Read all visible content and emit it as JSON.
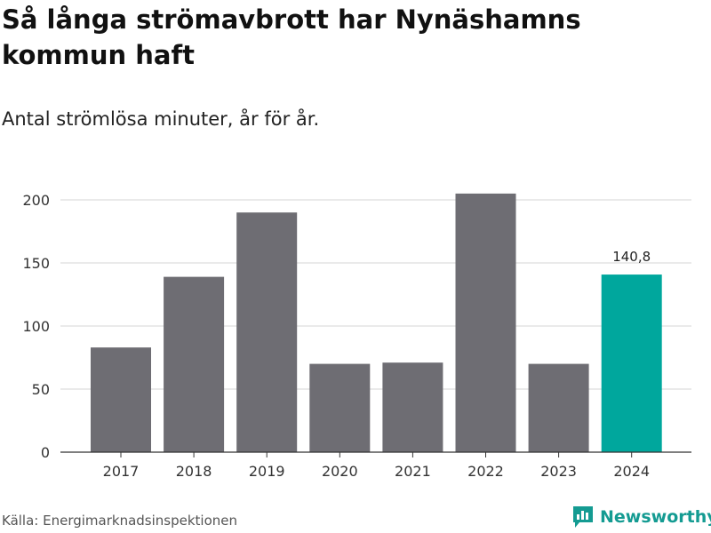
{
  "header": {
    "title": "Så långa strömavbrott har Nynäshamns kommun haft",
    "subtitle": "Antal strömlösa minuter, år för år."
  },
  "footer": {
    "source": "Källa: Energimarknadsinspektionen",
    "brand": "Newsworthy",
    "brand_icon": "bar-chart-icon"
  },
  "colors": {
    "bar": "#6e6d73",
    "highlight": "#00a79d",
    "grid": "#dddddd",
    "axis": "#333333",
    "brand": "#149b92"
  },
  "chart_data": {
    "type": "bar",
    "title": "Så långa strömavbrott har Nynäshamns kommun haft",
    "subtitle": "Antal strömlösa minuter, år för år.",
    "xlabel": "",
    "ylabel": "",
    "categories": [
      "2017",
      "2018",
      "2019",
      "2020",
      "2021",
      "2022",
      "2023",
      "2024"
    ],
    "values": [
      83,
      139,
      190,
      70,
      71,
      205,
      70,
      140.8
    ],
    "highlight_index": 7,
    "data_labels": [
      "",
      "",
      "",
      "",
      "",
      "",
      "",
      "140,8"
    ],
    "yticks": [
      0,
      50,
      100,
      150,
      200
    ],
    "ylim": [
      0,
      205
    ],
    "grid": true,
    "legend": "none"
  }
}
